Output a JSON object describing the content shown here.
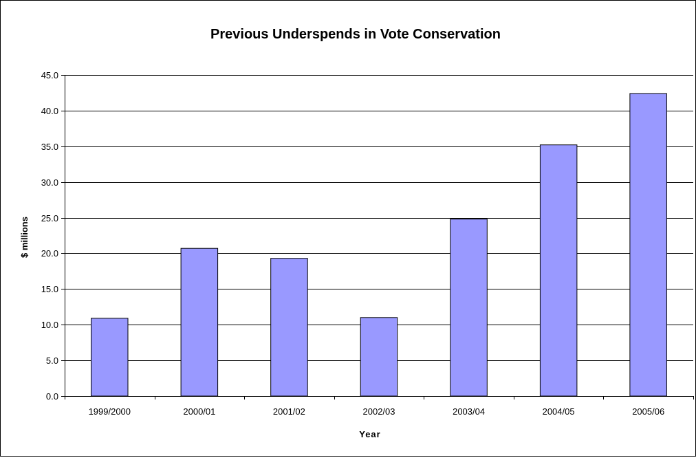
{
  "chart_data": {
    "type": "bar",
    "title": "Previous Underspends in Vote Conservation",
    "xlabel": "Year",
    "ylabel": "$ millions",
    "categories": [
      "1999/2000",
      "2000/01",
      "2001/02",
      "2002/03",
      "2003/04",
      "2004/05",
      "2005/06"
    ],
    "values": [
      10.9,
      20.7,
      19.3,
      11.0,
      24.8,
      35.2,
      42.4
    ],
    "ylim": [
      0,
      45
    ],
    "ytick_labels": [
      "0.0",
      "5.0",
      "10.0",
      "15.0",
      "20.0",
      "25.0",
      "30.0",
      "35.0",
      "40.0",
      "45.0"
    ],
    "grid": true,
    "legend": "none",
    "colors": {
      "bar_fill": "#9999FF",
      "bar_stroke": "#000000",
      "gridline": "#000000",
      "background": "#FFFFFF"
    }
  }
}
